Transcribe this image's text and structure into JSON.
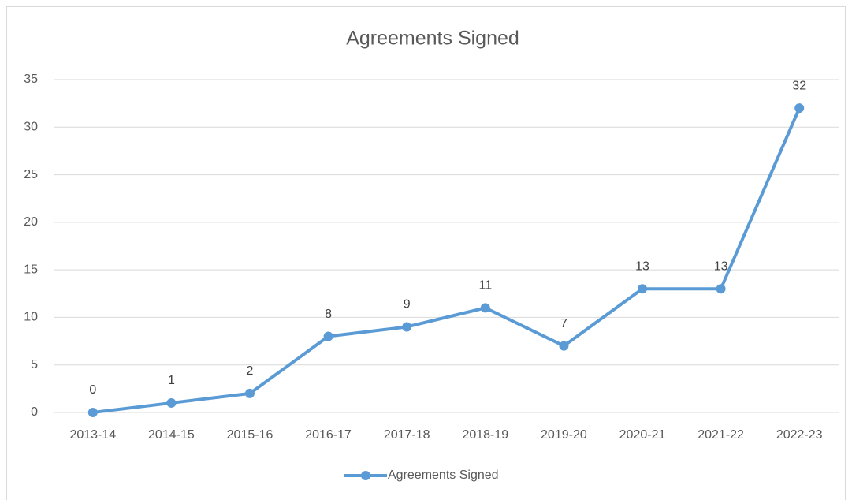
{
  "chart_data": {
    "type": "line",
    "title": "Agreements Signed",
    "categories": [
      "2013-14",
      "2014-15",
      "2015-16",
      "2016-17",
      "2017-18",
      "2018-19",
      "2019-20",
      "2020-21",
      "2021-22",
      "2022-23"
    ],
    "series": [
      {
        "name": "Agreements Signed",
        "color": "#5b9bd5",
        "values": [
          0,
          1,
          2,
          8,
          9,
          11,
          7,
          13,
          13,
          32
        ]
      }
    ],
    "ylim": [
      0,
      35
    ],
    "yticks": [
      0,
      5,
      10,
      15,
      20,
      25,
      30,
      35
    ],
    "grid": true,
    "data_labels": true,
    "legend": "bottom"
  }
}
